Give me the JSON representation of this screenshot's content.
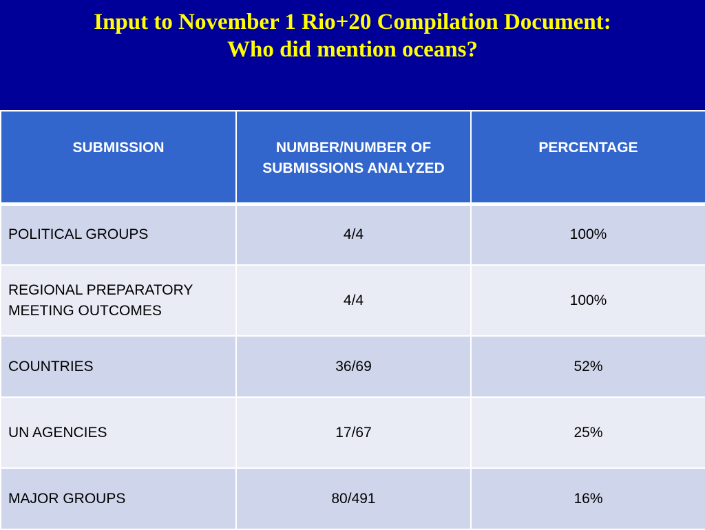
{
  "slide": {
    "title_line1": "Input to November 1 Rio+20 Compilation Document:",
    "title_line2": "Who did mention oceans?",
    "title_color": "#ffff00",
    "background_color": "#000099"
  },
  "table": {
    "headers": [
      "SUBMISSION",
      "NUMBER/NUMBER OF SUBMISSIONS ANALYZED",
      "PERCENTAGE"
    ],
    "header_color": "#3366cc",
    "rows": [
      {
        "submission": "POLITICAL GROUPS",
        "number": "4/4",
        "percentage": "100%"
      },
      {
        "submission": "REGIONAL PREPARATORY MEETING OUTCOMES",
        "number": "4/4",
        "percentage": "100%"
      },
      {
        "submission": "COUNTRIES",
        "number": "36/69",
        "percentage": "52%"
      },
      {
        "submission": "UN AGENCIES",
        "number": "17/67",
        "percentage": "25%"
      },
      {
        "submission": "MAJOR GROUPS",
        "number": "80/491",
        "percentage": "16%"
      }
    ]
  }
}
